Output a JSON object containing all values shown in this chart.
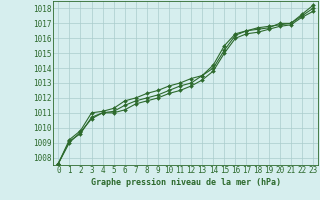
{
  "title": "Graphe pression niveau de la mer (hPa)",
  "background_color": "#d6eeee",
  "grid_color": "#aacccc",
  "line_color": "#2d6a2d",
  "xlim": [
    -0.5,
    23.5
  ],
  "ylim": [
    1007.5,
    1018.5
  ],
  "yticks": [
    1008,
    1009,
    1010,
    1011,
    1012,
    1013,
    1014,
    1015,
    1016,
    1017,
    1018
  ],
  "xticks": [
    0,
    1,
    2,
    3,
    4,
    5,
    6,
    7,
    8,
    9,
    10,
    11,
    12,
    13,
    14,
    15,
    16,
    17,
    18,
    19,
    20,
    21,
    22,
    23
  ],
  "series": [
    [
      1007.6,
      1009.0,
      1009.7,
      1010.6,
      1011.0,
      1011.1,
      1011.5,
      1011.8,
      1012.0,
      1012.2,
      1012.5,
      1012.8,
      1013.0,
      1013.5,
      1014.0,
      1015.2,
      1016.2,
      1016.5,
      1016.6,
      1016.7,
      1017.0,
      1017.0,
      1017.5,
      1018.0
    ],
    [
      1007.6,
      1009.2,
      1009.8,
      1011.0,
      1011.1,
      1011.3,
      1011.8,
      1012.0,
      1012.3,
      1012.5,
      1012.8,
      1013.0,
      1013.3,
      1013.5,
      1014.2,
      1015.5,
      1016.3,
      1016.5,
      1016.7,
      1016.8,
      1016.9,
      1017.0,
      1017.6,
      1018.2
    ],
    [
      1007.6,
      1009.1,
      1009.6,
      1010.7,
      1011.0,
      1011.0,
      1011.2,
      1011.6,
      1011.8,
      1012.0,
      1012.3,
      1012.5,
      1012.8,
      1013.2,
      1013.8,
      1015.0,
      1016.0,
      1016.3,
      1016.4,
      1016.6,
      1016.8,
      1016.9,
      1017.4,
      1017.8
    ]
  ],
  "title_fontsize": 6,
  "tick_fontsize": 5.5,
  "linewidth": 0.8,
  "markersize": 2.0
}
